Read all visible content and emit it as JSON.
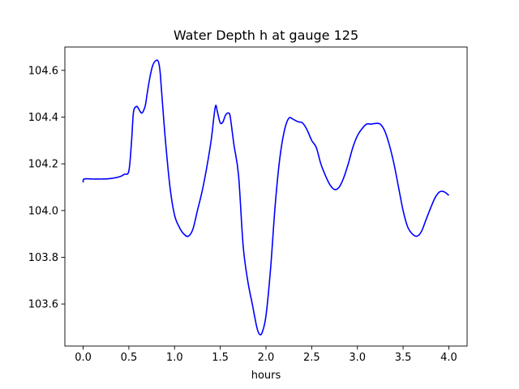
{
  "chart_data": {
    "type": "line",
    "title": "Water Depth h at gauge 125",
    "xlabel": "hours",
    "ylabel": "",
    "xlim": [
      -0.2,
      4.2
    ],
    "ylim": [
      103.42,
      104.7
    ],
    "grid": false,
    "legend": "none",
    "x_ticks": [
      0.0,
      0.5,
      1.0,
      1.5,
      2.0,
      2.5,
      3.0,
      3.5,
      4.0
    ],
    "x_tick_labels": [
      "0.0",
      "0.5",
      "1.0",
      "1.5",
      "2.0",
      "2.5",
      "3.0",
      "3.5",
      "4.0"
    ],
    "y_ticks": [
      103.6,
      103.8,
      104.0,
      104.2,
      104.4,
      104.6
    ],
    "y_tick_labels": [
      "103.6",
      "103.8",
      "104.0",
      "104.2",
      "104.4",
      "104.6"
    ],
    "series": [
      {
        "color": "#0000ff",
        "x": [
          0.0,
          0.01,
          0.1,
          0.2,
          0.3,
          0.4,
          0.45,
          0.5,
          0.53,
          0.55,
          0.58,
          0.6,
          0.63,
          0.65,
          0.68,
          0.7,
          0.73,
          0.76,
          0.79,
          0.82,
          0.84,
          0.86,
          0.9,
          0.95,
          1.0,
          1.05,
          1.1,
          1.15,
          1.2,
          1.25,
          1.3,
          1.35,
          1.4,
          1.43,
          1.45,
          1.47,
          1.5,
          1.53,
          1.56,
          1.6,
          1.62,
          1.65,
          1.7,
          1.75,
          1.8,
          1.85,
          1.9,
          1.93,
          1.96,
          2.0,
          2.05,
          2.1,
          2.15,
          2.2,
          2.25,
          2.3,
          2.35,
          2.4,
          2.45,
          2.5,
          2.55,
          2.6,
          2.65,
          2.7,
          2.75,
          2.8,
          2.85,
          2.9,
          2.95,
          3.0,
          3.05,
          3.1,
          3.15,
          3.2,
          3.25,
          3.3,
          3.35,
          3.4,
          3.45,
          3.5,
          3.55,
          3.6,
          3.65,
          3.7,
          3.75,
          3.8,
          3.85,
          3.9,
          3.95,
          4.0
        ],
        "y": [
          104.12,
          104.135,
          104.135,
          104.135,
          104.137,
          104.145,
          104.155,
          104.17,
          104.3,
          104.42,
          104.445,
          104.44,
          104.42,
          104.42,
          104.45,
          104.5,
          104.57,
          104.62,
          104.64,
          104.64,
          104.6,
          104.5,
          104.3,
          104.1,
          103.98,
          103.93,
          103.9,
          103.89,
          103.92,
          104.0,
          104.08,
          104.18,
          104.3,
          104.4,
          104.45,
          104.42,
          104.375,
          104.38,
          104.41,
          104.415,
          104.37,
          104.28,
          104.15,
          103.85,
          103.7,
          103.6,
          103.5,
          103.47,
          103.48,
          103.55,
          103.75,
          104.02,
          104.22,
          104.34,
          104.395,
          104.39,
          104.38,
          104.375,
          104.345,
          104.3,
          104.27,
          104.2,
          104.15,
          104.11,
          104.09,
          104.1,
          104.14,
          104.2,
          104.27,
          104.32,
          104.35,
          104.37,
          104.37,
          104.373,
          104.37,
          104.34,
          104.28,
          104.2,
          104.1,
          104.0,
          103.93,
          103.9,
          103.89,
          103.91,
          103.96,
          104.01,
          104.055,
          104.08,
          104.08,
          104.065
        ]
      }
    ]
  }
}
